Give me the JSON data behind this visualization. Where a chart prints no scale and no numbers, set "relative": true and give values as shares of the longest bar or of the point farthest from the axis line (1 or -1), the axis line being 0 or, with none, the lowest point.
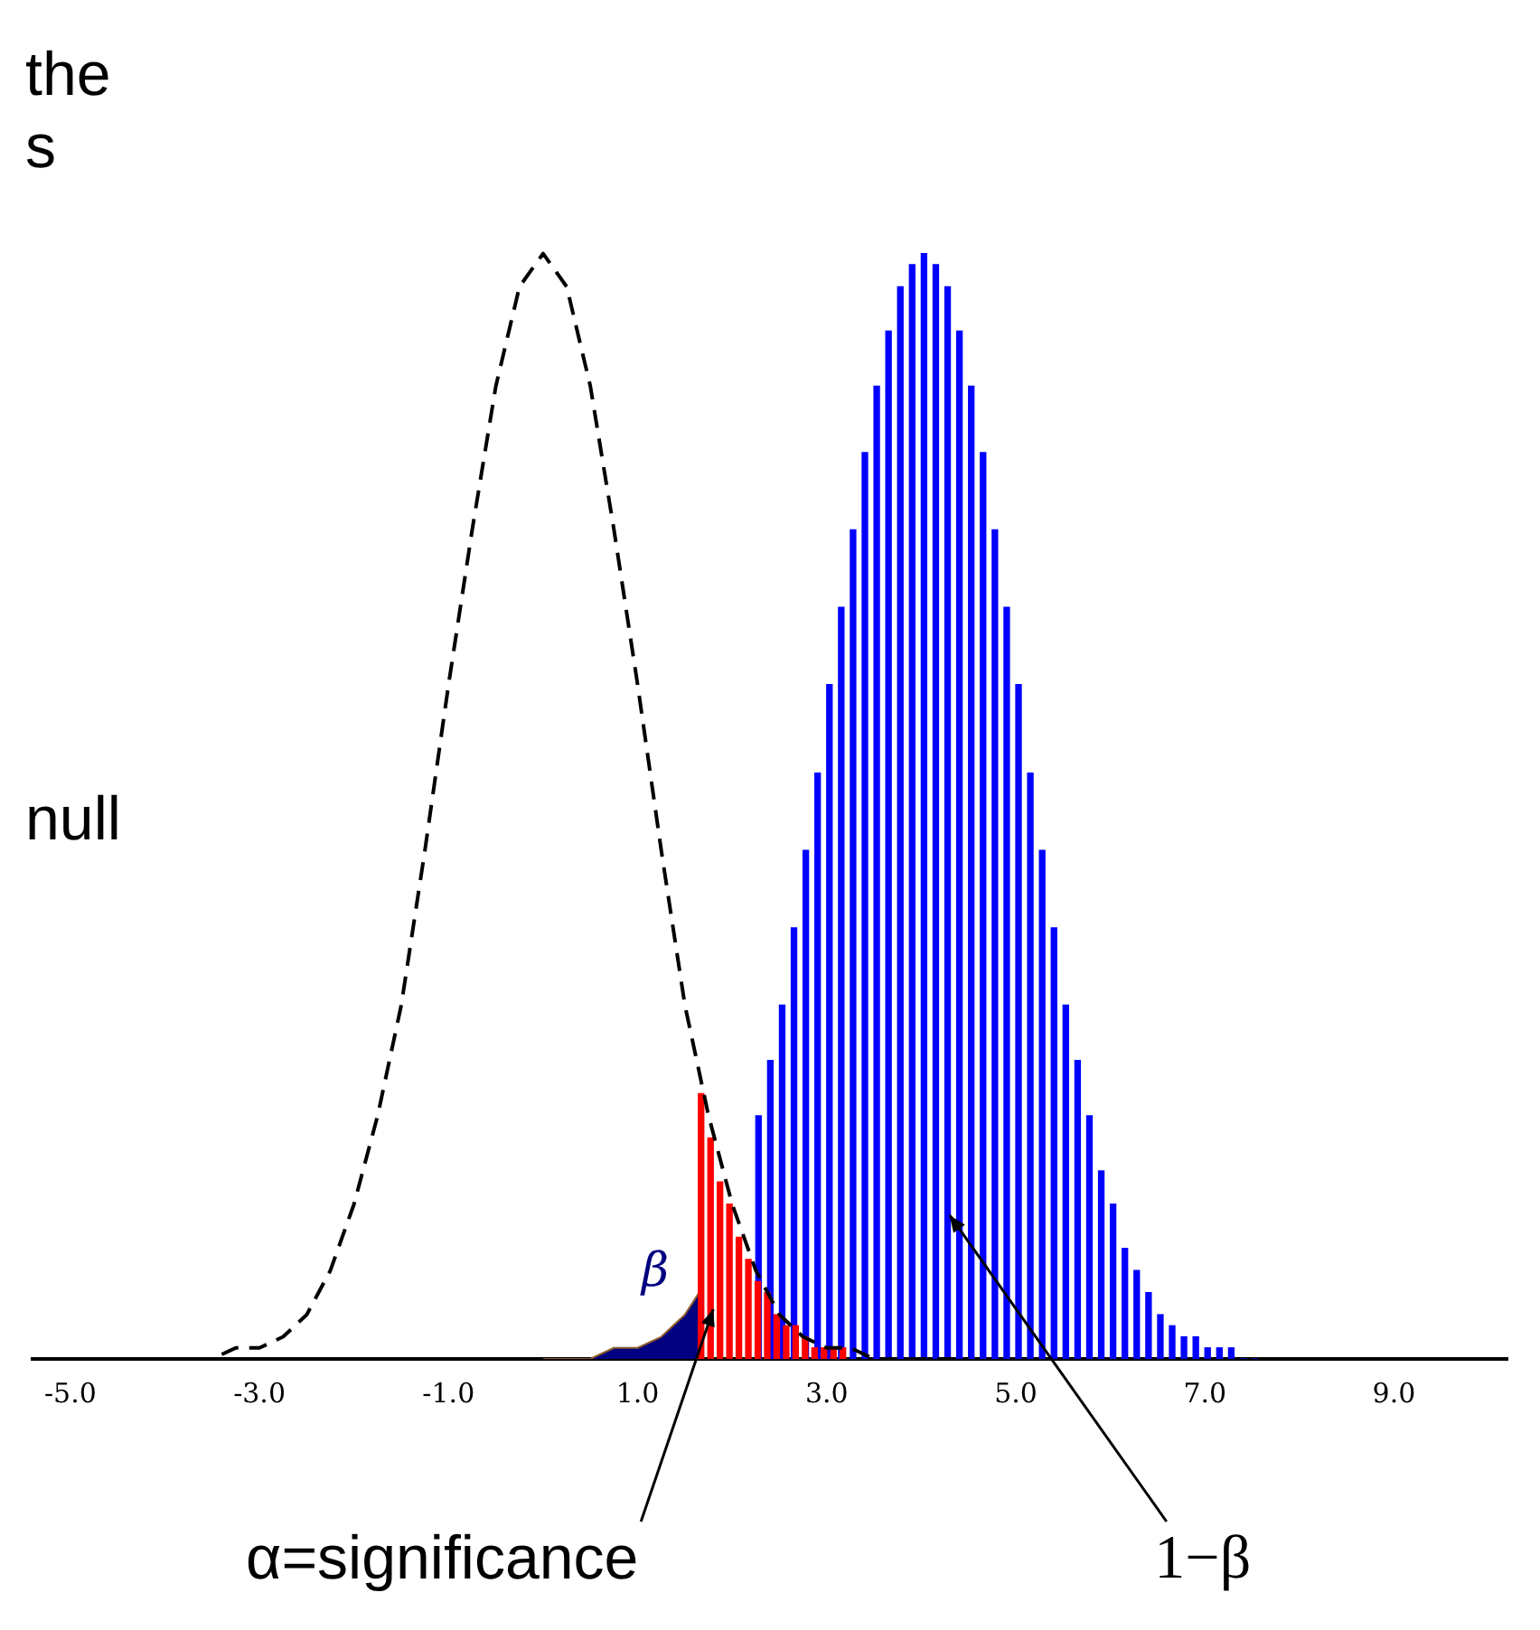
{
  "chart_data": {
    "type": "line",
    "relative": true,
    "legend": false,
    "grid": false,
    "marker": "none",
    "xlim": [
      -5.4,
      10.2
    ],
    "xticks": [
      {
        "value": -5,
        "label": "-5.0"
      },
      {
        "value": -3,
        "label": "-3.0"
      },
      {
        "value": -1,
        "label": "-1.0"
      },
      {
        "value": 1,
        "label": "1.0"
      },
      {
        "value": 3,
        "label": "3.0"
      },
      {
        "value": 5,
        "label": "5.0"
      },
      {
        "value": 7,
        "label": "7.0"
      },
      {
        "value": 9,
        "label": "9.0"
      }
    ],
    "series": [
      {
        "type": "area",
        "color": "#000080",
        "x": [
          0,
          0.25,
          0.5,
          0.75,
          1,
          1.25,
          1.5,
          1.65
        ],
        "values": [
          0,
          0,
          0,
          0.01,
          0.01,
          0.02,
          0.04,
          0.06
        ]
      },
      {
        "type": "bar",
        "color": "#0000ff",
        "x": [
          2.25,
          2.375,
          2.5,
          2.625,
          2.75,
          2.875,
          3,
          3.125,
          3.25,
          3.375,
          3.5,
          3.625,
          3.75,
          3.875,
          4,
          4.125,
          4.25,
          4.375,
          4.5,
          4.625,
          4.75,
          4.875,
          5,
          5.125,
          5.25,
          5.375,
          5.5,
          5.625,
          5.75,
          5.875,
          6,
          6.125,
          6.25,
          6.375,
          6.5,
          6.625,
          6.75,
          6.875,
          7,
          7.125,
          7.25,
          7.375,
          7.5
        ],
        "values": [
          0.22,
          0.27,
          0.32,
          0.39,
          0.46,
          0.53,
          0.61,
          0.68,
          0.75,
          0.82,
          0.88,
          0.93,
          0.97,
          0.99,
          1,
          0.99,
          0.97,
          0.93,
          0.88,
          0.82,
          0.75,
          0.68,
          0.61,
          0.53,
          0.46,
          0.39,
          0.32,
          0.27,
          0.22,
          0.17,
          0.14,
          0.1,
          0.08,
          0.06,
          0.04,
          0.03,
          0.02,
          0.02,
          0.01,
          0.01,
          0.01,
          0,
          0
        ]
      },
      {
        "type": "bar",
        "color": "#ff0000",
        "x": [
          1.7,
          1.8,
          1.9,
          2.0,
          2.1,
          2.2,
          2.3,
          2.4,
          2.5,
          2.6,
          2.7,
          2.8,
          2.9,
          3.0,
          3.1,
          3.2
        ],
        "values": [
          0.24,
          0.2,
          0.16,
          0.14,
          0.11,
          0.09,
          0.07,
          0.06,
          0.04,
          0.03,
          0.03,
          0.02,
          0.01,
          0.01,
          0.01,
          0.01
        ]
      },
      {
        "color": "#000000",
        "line_style": "dashed",
        "x": [
          -4,
          -3.75,
          -3.5,
          -3.25,
          -3,
          -2.75,
          -2.5,
          -2.25,
          -2,
          -1.75,
          -1.5,
          -1.25,
          -1,
          -0.75,
          -0.5,
          -0.25,
          0,
          0.25,
          0.5,
          0.75,
          1,
          1.25,
          1.5,
          1.75,
          2,
          2.25,
          2.5,
          2.75,
          3,
          3.25,
          3.5,
          3.75,
          4,
          4.25,
          4.5
        ],
        "values": [
          0,
          0,
          0,
          0.01,
          0.01,
          0.02,
          0.04,
          0.08,
          0.14,
          0.22,
          0.32,
          0.46,
          0.61,
          0.75,
          0.88,
          0.97,
          1,
          0.97,
          0.88,
          0.75,
          0.61,
          0.46,
          0.32,
          0.22,
          0.14,
          0.08,
          0.04,
          0.02,
          0.01,
          0.01,
          0,
          0,
          0,
          0,
          0
        ]
      }
    ],
    "annotations": [
      "the",
      "s",
      "null",
      {
        "text": "β",
        "x": 1.3,
        "y": 0.03
      },
      {
        "text": "α=significance",
        "x": 1.8,
        "y": 0.045
      },
      {
        "text": "1−β",
        "x": 4.3,
        "y": 0.13
      }
    ]
  }
}
